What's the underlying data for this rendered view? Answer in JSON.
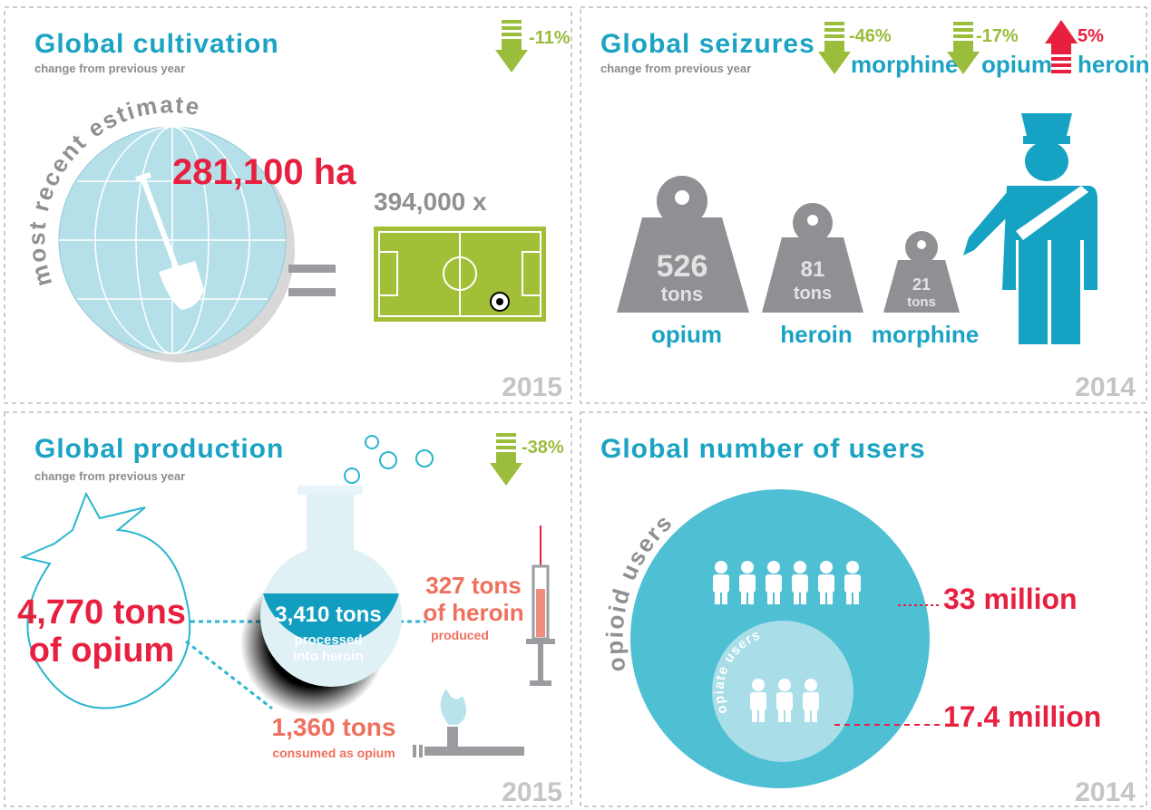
{
  "panels": [
    {
      "title": "Global cultivation",
      "subtitle": "change from previous year",
      "change": "-11%",
      "arc_label": "most recent estimate",
      "area": "281,100 ha",
      "equivalent": "394,000 x",
      "year": "2015"
    },
    {
      "title": "Global seizures",
      "subtitle": "change from previous year",
      "changes": [
        {
          "value": "-46%",
          "label": "morphine"
        },
        {
          "value": "-17%",
          "label": "opium"
        },
        {
          "value": "5%",
          "label": "heroin"
        }
      ],
      "weights": [
        {
          "amount": "526",
          "unit": "tons",
          "label": "opium"
        },
        {
          "amount": "81",
          "unit": "tons",
          "label": "heroin"
        },
        {
          "amount": "21",
          "unit": "tons",
          "label": "morphine"
        }
      ],
      "year": "2014"
    },
    {
      "title": "Global production",
      "subtitle": "change from previous year",
      "change": "-38%",
      "opium": {
        "amount": "4,770 tons",
        "label": "of opium"
      },
      "processed": {
        "amount": "3,410 tons",
        "label": [
          "processed",
          "into heroin"
        ]
      },
      "heroin": {
        "amount": "327 tons",
        "label": "of heroin",
        "note": "produced"
      },
      "consumed": {
        "amount": "1,360 tons",
        "label": "consumed as opium"
      },
      "year": "2015"
    },
    {
      "title": "Global number of users",
      "opioid_label": "opioid users",
      "opiate_label": "opiate users",
      "opioid_users": "33 million",
      "opiate_users": "17.4 million",
      "year": "2014"
    }
  ]
}
